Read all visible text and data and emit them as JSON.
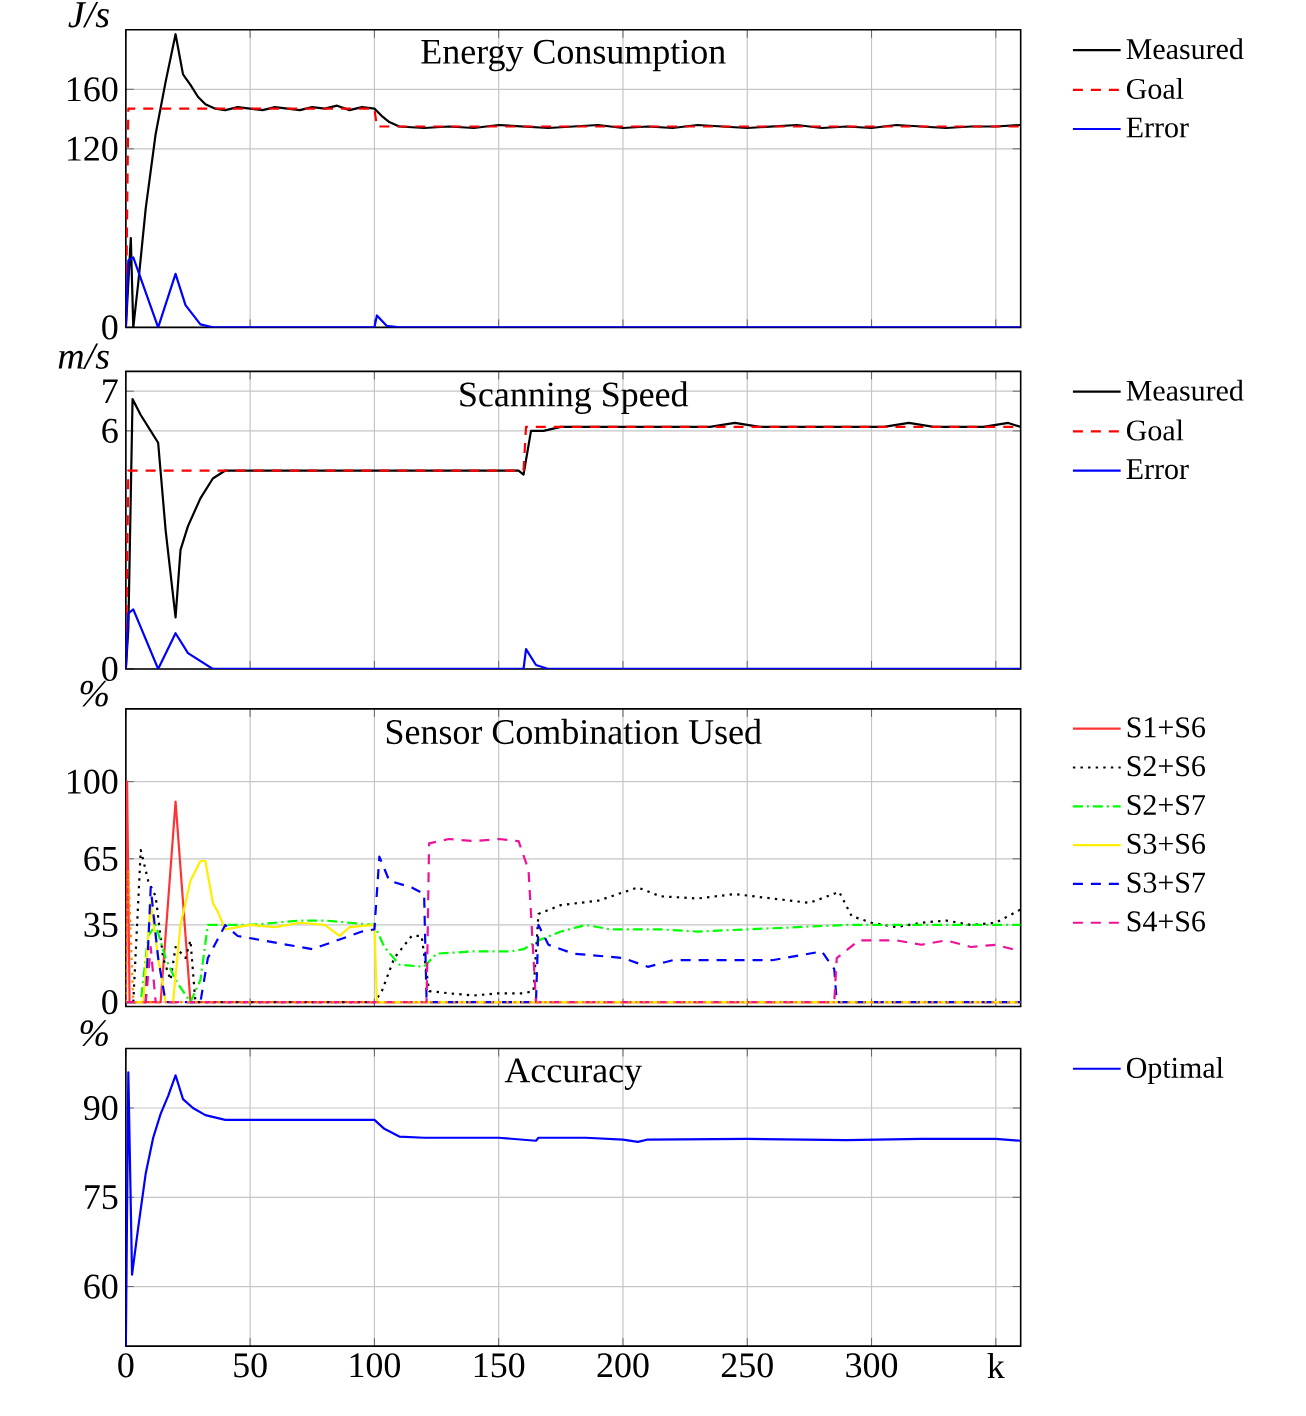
{
  "chart_data": [
    {
      "type": "line",
      "title": "Energy Consumption",
      "ylabel": "J/s",
      "xlim": [
        0,
        360
      ],
      "xticks": [
        0,
        50,
        100,
        150,
        200,
        250,
        300,
        350
      ],
      "ylim": [
        0,
        200
      ],
      "yticks": [
        0,
        120,
        160
      ],
      "grid": true,
      "legend": "right",
      "tick_labels": "y",
      "series": [
        {
          "name": "Measured",
          "color": "#000000",
          "line_style": "solid",
          "x": [
            0,
            0.5,
            1,
            2,
            3,
            5,
            8,
            12,
            16,
            20,
            23,
            26,
            29,
            32,
            36,
            40,
            45,
            50,
            55,
            60,
            65,
            70,
            75,
            80,
            85,
            90,
            95,
            100,
            103,
            106,
            110,
            120,
            130,
            140,
            150,
            160,
            170,
            180,
            190,
            200,
            210,
            220,
            230,
            240,
            250,
            260,
            270,
            280,
            290,
            300,
            310,
            320,
            330,
            340,
            350,
            360
          ],
          "values": [
            0,
            null,
            null,
            60,
            0,
            30,
            80,
            130,
            165,
            197,
            170,
            163,
            155,
            150,
            147,
            146,
            148,
            147,
            146,
            148,
            147,
            146,
            148,
            147,
            149,
            146,
            148,
            147,
            142,
            138,
            135,
            134,
            135,
            134,
            136,
            135,
            134,
            135,
            136,
            134,
            135,
            134,
            136,
            135,
            134,
            135,
            136,
            134,
            135,
            134,
            136,
            135,
            134,
            135,
            135,
            136
          ]
        },
        {
          "name": "Goal",
          "color": "#ff0000",
          "line_style": "dashed",
          "x": [
            0,
            1,
            100,
            101,
            360
          ],
          "values": [
            0,
            147,
            147,
            135,
            135
          ]
        },
        {
          "name": "Error",
          "color": "#0000ff",
          "line_style": "solid",
          "x": [
            0,
            1,
            3,
            13,
            20,
            24,
            30,
            35,
            100,
            101,
            105,
            110,
            360
          ],
          "values": [
            0,
            45,
            47,
            0,
            36,
            15,
            2,
            0,
            0,
            8,
            1,
            0,
            0
          ]
        }
      ]
    },
    {
      "type": "line",
      "title": "Scanning Speed",
      "ylabel": "m/s",
      "xlim": [
        0,
        360
      ],
      "xticks": [
        0,
        50,
        100,
        150,
        200,
        250,
        300,
        350
      ],
      "ylim": [
        0,
        7.5
      ],
      "yticks": [
        0,
        6,
        7
      ],
      "grid": true,
      "legend": "right",
      "tick_labels": "y",
      "series": [
        {
          "name": "Measured",
          "color": "#000000",
          "line_style": "solid",
          "x": [
            0,
            1,
            2.7,
            6,
            10,
            13,
            16,
            20,
            22,
            25,
            30,
            35,
            40,
            50,
            60,
            70,
            80,
            90,
            100,
            110,
            120,
            130,
            140,
            150,
            158,
            160,
            163,
            168,
            175,
            185,
            195,
            205,
            215,
            225,
            235,
            245,
            255,
            265,
            275,
            285,
            295,
            305,
            315,
            325,
            335,
            345,
            355,
            360
          ],
          "values": [
            0,
            1,
            6.8,
            6.4,
            6.0,
            5.7,
            3.5,
            1.3,
            3.0,
            3.6,
            4.3,
            4.8,
            5.0,
            5.0,
            5.0,
            5.0,
            5.0,
            5.0,
            5.0,
            5.0,
            5.0,
            5.0,
            5.0,
            5.0,
            5.0,
            4.9,
            6.0,
            6.0,
            6.1,
            6.1,
            6.1,
            6.1,
            6.1,
            6.1,
            6.1,
            6.2,
            6.1,
            6.1,
            6.1,
            6.1,
            6.1,
            6.1,
            6.2,
            6.1,
            6.1,
            6.1,
            6.2,
            6.1
          ]
        },
        {
          "name": "Goal",
          "color": "#ff0000",
          "line_style": "dashed",
          "x": [
            0,
            1,
            160,
            161,
            360
          ],
          "values": [
            0,
            5.0,
            5.0,
            6.1,
            6.1
          ]
        },
        {
          "name": "Error",
          "color": "#0000ff",
          "line_style": "solid",
          "x": [
            0,
            1,
            3,
            13,
            20,
            25,
            35,
            160,
            161,
            165,
            170,
            360
          ],
          "values": [
            0,
            1.4,
            1.5,
            0,
            0.9,
            0.4,
            0,
            0,
            0.5,
            0.1,
            0,
            0
          ]
        }
      ]
    },
    {
      "type": "line",
      "title": "Sensor Combination Used",
      "ylabel": "%",
      "xlim": [
        0,
        360
      ],
      "xticks": [
        0,
        50,
        100,
        150,
        200,
        250,
        300,
        350
      ],
      "ylim": [
        -2,
        133
      ],
      "yticks": [
        0,
        35,
        65,
        100
      ],
      "grid": true,
      "legend": "right",
      "tick_labels": "y",
      "series": [
        {
          "name": "S1+S6",
          "color": "#ff3333",
          "line_style": "solid",
          "x": [
            0,
            0.5,
            1.5,
            10,
            14,
            20,
            26,
            360
          ],
          "values": [
            0,
            100,
            0,
            0,
            0,
            91,
            0,
            0
          ]
        },
        {
          "name": "S2+S6",
          "color": "#000000",
          "line_style": "dotted",
          "x": [
            0,
            3,
            6,
            9,
            12,
            15,
            18,
            20,
            24,
            26,
            28,
            100,
            103,
            108,
            115,
            119,
            122,
            130,
            140,
            150,
            160,
            164,
            166,
            175,
            190,
            206,
            215,
            230,
            245,
            260,
            275,
            287,
            292,
            300,
            310,
            320,
            330,
            340,
            350,
            360
          ],
          "values": [
            0,
            0,
            69,
            55,
            48,
            20,
            10,
            25,
            20,
            28,
            0,
            0,
            5,
            20,
            30,
            30,
            5,
            4,
            3,
            4,
            4,
            5,
            40,
            44,
            46,
            52,
            48,
            47,
            49,
            47,
            45,
            50,
            39,
            36,
            34,
            36,
            37,
            35,
            36,
            42
          ]
        },
        {
          "name": "S2+S7",
          "color": "#00ff00",
          "line_style": "dashdot",
          "x": [
            0,
            6,
            9,
            12,
            16,
            20,
            26,
            30,
            33,
            40,
            50,
            60,
            70,
            80,
            90,
            100,
            104,
            110,
            120,
            125,
            140,
            155,
            160,
            166,
            175,
            185,
            195,
            215,
            230,
            250,
            270,
            290,
            300,
            320,
            340,
            355,
            360
          ],
          "values": [
            0,
            0,
            30,
            35,
            20,
            10,
            0,
            10,
            35,
            35,
            35,
            36,
            37,
            37,
            36,
            35,
            25,
            17,
            16,
            22,
            23,
            23,
            24,
            28,
            32,
            35,
            33,
            33,
            32,
            33,
            34,
            35,
            35,
            35,
            35,
            35,
            35
          ]
        },
        {
          "name": "S3+S6",
          "color": "#ffee00",
          "line_style": "solid",
          "x": [
            0,
            7,
            10,
            13,
            16,
            19,
            22,
            26,
            30,
            32,
            35,
            37,
            40,
            50,
            60,
            70,
            80,
            86,
            90,
            100,
            101,
            360
          ],
          "values": [
            0,
            0,
            45,
            20,
            0,
            0,
            35,
            55,
            64,
            64,
            45,
            41,
            33,
            35,
            34,
            36,
            35,
            30,
            34,
            35,
            0,
            0
          ]
        },
        {
          "name": "S3+S7",
          "color": "#0000ff",
          "line_style": "dashed",
          "x": [
            0,
            8,
            10,
            13,
            16,
            30,
            33,
            40,
            45,
            55,
            65,
            75,
            85,
            95,
            100,
            102,
            106,
            115,
            120,
            121,
            165,
            166,
            170,
            180,
            200,
            210,
            220,
            240,
            260,
            280,
            285,
            286,
            360
          ],
          "values": [
            0,
            0,
            52,
            20,
            0,
            0,
            20,
            35,
            30,
            28,
            26,
            24,
            28,
            32,
            33,
            66,
            55,
            52,
            49,
            0,
            0,
            35,
            26,
            22,
            20,
            16,
            19,
            19,
            19,
            23,
            15,
            0,
            0
          ]
        },
        {
          "name": "S4+S6",
          "color": "#ee1199",
          "line_style": "dashed",
          "x": [
            0,
            8,
            10,
            12,
            121,
            122,
            130,
            140,
            150,
            158,
            162,
            164,
            165,
            285,
            286,
            295,
            310,
            320,
            330,
            340,
            350,
            360
          ],
          "values": [
            0,
            0,
            25,
            0,
            0,
            72,
            74,
            73,
            74,
            73,
            60,
            20,
            0,
            0,
            20,
            28,
            28,
            26,
            28,
            25,
            26,
            23
          ]
        },
        {
          "color": "#ff8800",
          "line_style": "dotted",
          "x": [
            0,
            1,
            3,
            360
          ],
          "values": [
            0,
            60,
            0,
            0
          ]
        }
      ]
    },
    {
      "type": "line",
      "title": "Accuracy",
      "ylabel": "%",
      "xlim": [
        0,
        360
      ],
      "xticks": [
        0,
        50,
        100,
        150,
        200,
        250,
        300,
        {
          "value": 350,
          "label": "k"
        }
      ],
      "ylim": [
        50,
        100
      ],
      "yticks": [
        60,
        75,
        90
      ],
      "grid": true,
      "legend": "right",
      "series": [
        {
          "name": "Optimal",
          "color": "#0000ff",
          "line_style": "solid",
          "x": [
            0,
            1,
            2.5,
            5,
            8,
            11,
            14,
            17,
            20,
            23,
            27,
            32,
            40,
            60,
            80,
            100,
            104,
            110,
            120,
            130,
            150,
            165,
            166,
            185,
            200,
            206,
            210,
            250,
            290,
            320,
            350,
            360
          ],
          "values": [
            50,
            96,
            62,
            70,
            79,
            85,
            89,
            92,
            95.5,
            91.5,
            90,
            88.8,
            88,
            88,
            88,
            88,
            86.5,
            85.2,
            85,
            85,
            85,
            84.5,
            85,
            85,
            84.7,
            84.3,
            84.7,
            84.8,
            84.6,
            84.8,
            84.8,
            84.5
          ]
        }
      ]
    }
  ]
}
